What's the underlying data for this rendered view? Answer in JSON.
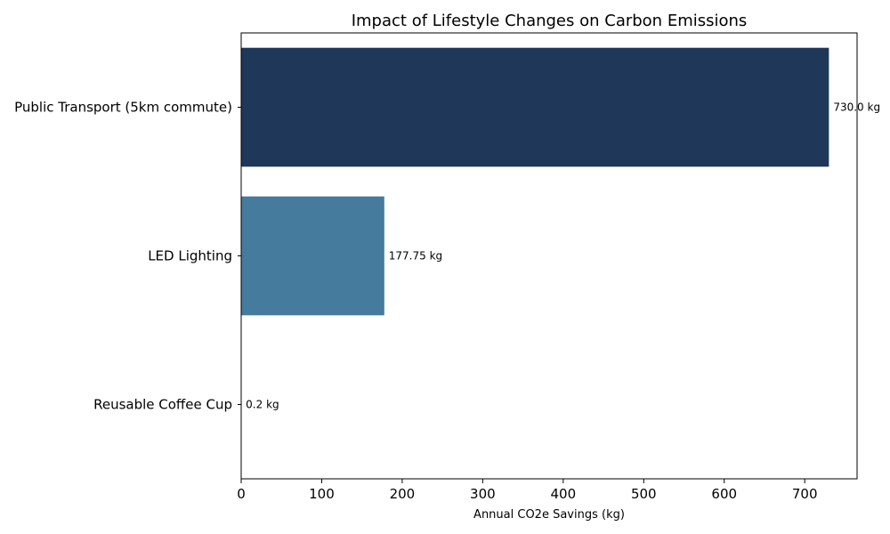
{
  "chart_data": {
    "type": "bar",
    "orientation": "horizontal",
    "title": "Impact of Lifestyle Changes on Carbon Emissions",
    "xlabel": "Annual CO2e Savings (kg)",
    "ylabel": "",
    "categories": [
      "Public Transport (5km commute)",
      "LED Lighting",
      "Reusable Coffee Cup"
    ],
    "values": [
      730.0,
      177.75,
      0.2
    ],
    "data_labels": [
      "730.0 kg",
      "177.75 kg",
      "0.2 kg"
    ],
    "bar_colors": [
      "#1f3759",
      "#457b9d",
      "#e63946"
    ],
    "xlim": [
      0,
      765
    ],
    "x_ticks": [
      0,
      100,
      200,
      300,
      400,
      500,
      600,
      700
    ],
    "grid": false,
    "legend": "none"
  }
}
